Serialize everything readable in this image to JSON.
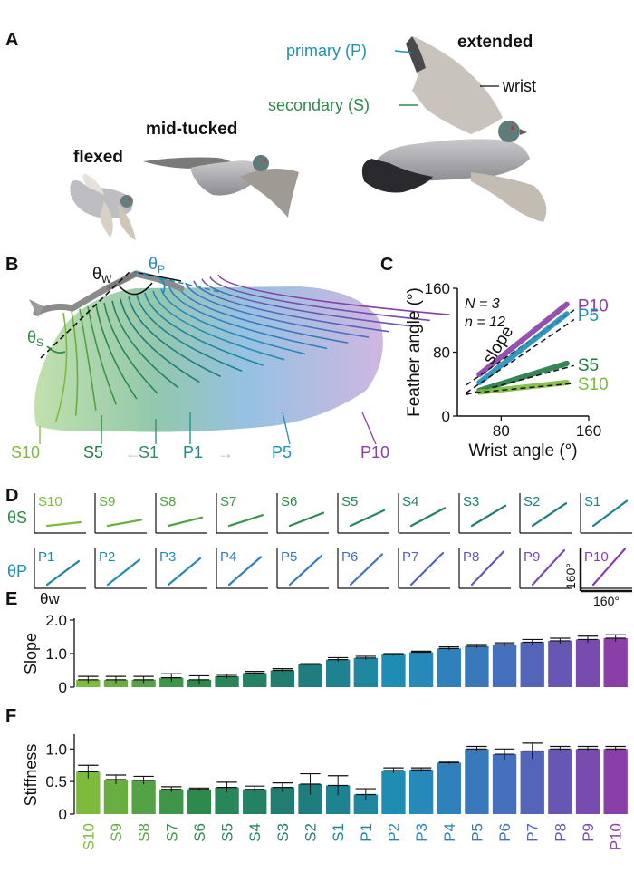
{
  "panels": {
    "A": "A",
    "B": "B",
    "C": "C",
    "D": "D",
    "E": "E",
    "F": "F"
  },
  "panelA": {
    "flexed": "flexed",
    "mid_tucked": "mid-tucked",
    "extended": "extended",
    "primary": "primary (P)",
    "secondary": "secondary (S)",
    "wrist": "wrist"
  },
  "panelB": {
    "theta_w": "θ",
    "theta_w_sub": "W",
    "theta_p": "θ",
    "theta_p_sub": "P",
    "theta_s": "θ",
    "theta_s_sub": "S",
    "labels": [
      "S10",
      "S5",
      "S1",
      "P1",
      "P5",
      "P10"
    ]
  },
  "panelD": {
    "theta_s": "θ",
    "theta_s_sub": "S",
    "theta_p": "θ",
    "theta_p_sub": "P",
    "theta_w": "θ",
    "theta_w_sub": "w",
    "scale_y": "160°",
    "scale_x": "160°",
    "row1": [
      "S10",
      "S9",
      "S8",
      "S7",
      "S6",
      "S5",
      "S4",
      "S3",
      "S2",
      "S1"
    ],
    "row2": [
      "P1",
      "P2",
      "P3",
      "P4",
      "P5",
      "P6",
      "P7",
      "P8",
      "P9",
      "P10"
    ]
  },
  "colors": {
    "secondary": "#2e8b4a",
    "primary": "#1f8fb8",
    "purple": "#8a3ea8",
    "lightgreen": "#7dbb3c"
  },
  "chart_data": [
    {
      "type": "line",
      "panel": "C",
      "xlabel": "Wrist angle (°)",
      "ylabel": "Feather angle (°)",
      "xlim": [
        40,
        160
      ],
      "ylim": [
        0,
        160
      ],
      "xticks": [
        "80",
        "160"
      ],
      "yticks": [
        "0",
        "80",
        "160"
      ],
      "annotations": [
        "N = 3",
        "n = 12",
        "slope"
      ],
      "series": [
        {
          "name": "P10",
          "x": [
            60,
            140
          ],
          "values": [
            52,
            140
          ],
          "color": "#8a3ea8"
        },
        {
          "name": "P5",
          "x": [
            60,
            140
          ],
          "values": [
            42,
            128
          ],
          "color": "#1f8fb8"
        },
        {
          "name": "S5",
          "x": [
            60,
            140
          ],
          "values": [
            32,
            66
          ],
          "color": "#1f7a44"
        },
        {
          "name": "S10",
          "x": [
            60,
            140
          ],
          "values": [
            30,
            42
          ],
          "color": "#7dbb3c"
        }
      ]
    },
    {
      "type": "bar",
      "panel": "E",
      "ylabel": "Slope",
      "ylim": [
        0,
        2.0
      ],
      "yticks": [
        "0",
        "1.0",
        "2.0"
      ],
      "categories": [
        "S10",
        "S9",
        "S8",
        "S7",
        "S6",
        "S5",
        "S4",
        "S3",
        "S2",
        "S1",
        "P1",
        "P2",
        "P3",
        "P4",
        "P5",
        "P6",
        "P7",
        "P8",
        "P9",
        "P10"
      ],
      "values": [
        0.22,
        0.22,
        0.22,
        0.28,
        0.22,
        0.32,
        0.42,
        0.5,
        0.68,
        0.82,
        0.87,
        0.97,
        1.04,
        1.15,
        1.22,
        1.27,
        1.34,
        1.38,
        1.42,
        1.46
      ],
      "errors": [
        0.1,
        0.1,
        0.1,
        0.12,
        0.12,
        0.06,
        0.05,
        0.05,
        0.02,
        0.06,
        0.05,
        0.03,
        0.03,
        0.05,
        0.05,
        0.05,
        0.08,
        0.08,
        0.1,
        0.1
      ]
    },
    {
      "type": "bar",
      "panel": "F",
      "ylabel": "Stiffness",
      "ylim": [
        0,
        1.2
      ],
      "yticks": [
        "0",
        "0.5",
        "1.0"
      ],
      "categories": [
        "S10",
        "S9",
        "S8",
        "S7",
        "S6",
        "S5",
        "S4",
        "S3",
        "S2",
        "S1",
        "P1",
        "P2",
        "P3",
        "P4",
        "P5",
        "P6",
        "P7",
        "P8",
        "P9",
        "P10"
      ],
      "values": [
        0.65,
        0.53,
        0.52,
        0.38,
        0.38,
        0.41,
        0.38,
        0.41,
        0.46,
        0.44,
        0.3,
        0.67,
        0.68,
        0.79,
        1.0,
        0.92,
        0.97,
        1.0,
        1.0,
        1.0
      ],
      "errors": [
        0.1,
        0.07,
        0.06,
        0.04,
        0.02,
        0.08,
        0.05,
        0.07,
        0.16,
        0.15,
        0.09,
        0.04,
        0.03,
        0.02,
        0.04,
        0.08,
        0.12,
        0.04,
        0.04,
        0.04
      ]
    }
  ]
}
